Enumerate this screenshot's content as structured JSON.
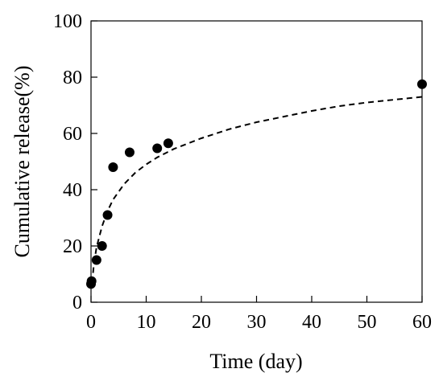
{
  "chart_data": {
    "type": "scatter",
    "xlabel": "Time (day)",
    "ylabel": "Cumulative release(%)",
    "xlim": [
      0,
      60
    ],
    "ylim": [
      0,
      100
    ],
    "x_ticks": [
      0,
      10,
      20,
      30,
      40,
      50,
      60
    ],
    "y_ticks": [
      0,
      20,
      40,
      60,
      80,
      100
    ],
    "grid": false,
    "legend": "none",
    "series": [
      {
        "style": "filled-circle-markers",
        "color": "#000000",
        "points": [
          {
            "x": 0.0,
            "y": 6.5
          },
          {
            "x": 0.1,
            "y": 7.5
          },
          {
            "x": 1.0,
            "y": 15.0
          },
          {
            "x": 2.0,
            "y": 20.0
          },
          {
            "x": 3.0,
            "y": 31.0
          },
          {
            "x": 4.0,
            "y": 48.0
          },
          {
            "x": 7.0,
            "y": 53.3
          },
          {
            "x": 12.0,
            "y": 54.7
          },
          {
            "x": 14.0,
            "y": 56.5
          },
          {
            "x": 60.0,
            "y": 77.5
          }
        ]
      },
      {
        "style": "dashed-fit-line",
        "color": "#000000",
        "points": [
          {
            "x": 0.2,
            "y": 7.0
          },
          {
            "x": 0.5,
            "y": 13.0
          },
          {
            "x": 1.0,
            "y": 19.5
          },
          {
            "x": 2.0,
            "y": 27.0
          },
          {
            "x": 3.0,
            "y": 32.5
          },
          {
            "x": 4.0,
            "y": 36.5
          },
          {
            "x": 6.0,
            "y": 42.0
          },
          {
            "x": 8.0,
            "y": 46.0
          },
          {
            "x": 10.0,
            "y": 49.0
          },
          {
            "x": 12.0,
            "y": 51.5
          },
          {
            "x": 15.0,
            "y": 54.5
          },
          {
            "x": 20.0,
            "y": 58.3
          },
          {
            "x": 25.0,
            "y": 61.5
          },
          {
            "x": 30.0,
            "y": 64.0
          },
          {
            "x": 35.0,
            "y": 66.0
          },
          {
            "x": 40.0,
            "y": 68.0
          },
          {
            "x": 45.0,
            "y": 69.7
          },
          {
            "x": 50.0,
            "y": 71.0
          },
          {
            "x": 55.0,
            "y": 72.0
          },
          {
            "x": 60.0,
            "y": 73.0
          }
        ]
      }
    ]
  }
}
